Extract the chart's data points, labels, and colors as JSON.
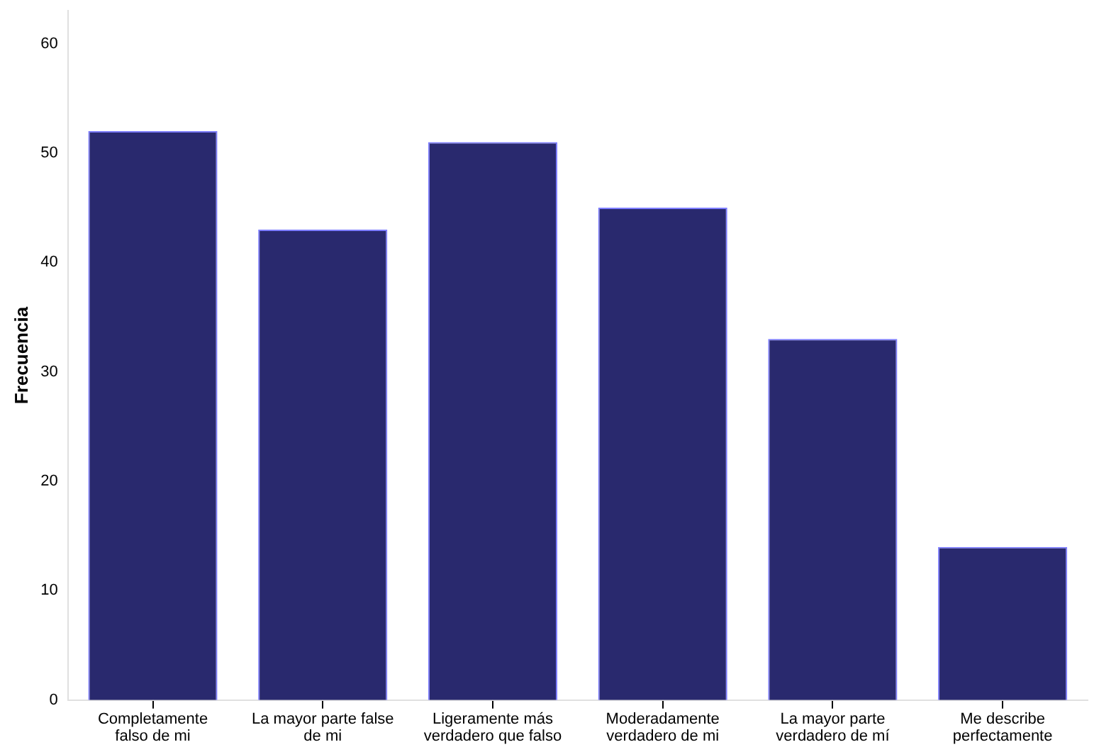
{
  "chart_data": {
    "type": "bar",
    "ylabel": "Frecuencia",
    "categories": [
      "Completamente falso de mi",
      "La mayor parte false de mi",
      "Ligeramente más verdadero que falso",
      "Moderadamente verdadero de mi",
      "La mayor parte verdadero de mí",
      "Me describe perfectamente"
    ],
    "values": [
      52,
      43,
      51,
      45,
      33,
      14
    ],
    "color": "#29296e",
    "ylim": [
      0,
      63
    ],
    "yticks": [
      0,
      10,
      20,
      30,
      40,
      50,
      60
    ],
    "grid": false,
    "legend": false
  }
}
